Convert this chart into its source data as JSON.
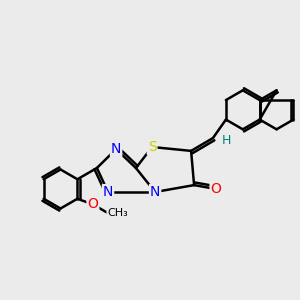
{
  "background_color": "#ebebeb",
  "bond_color": "#000000",
  "bond_width": 1.8,
  "atom_colors": {
    "S": "#cccc00",
    "N": "#0000ff",
    "O": "#ff0000",
    "C": "#000000",
    "H": "#008080"
  },
  "font_size": 9
}
